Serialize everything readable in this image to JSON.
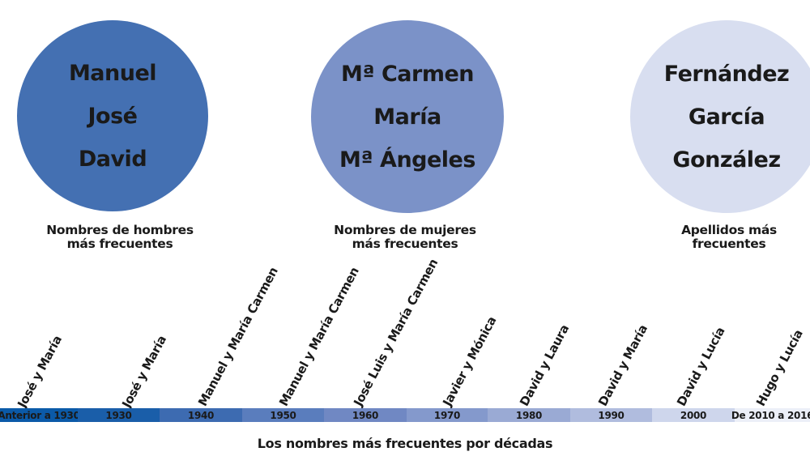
{
  "colors": {
    "circle_men": "#4470b2",
    "circle_women": "#7b92c8",
    "circle_surnames": "#d8def0"
  },
  "groups": {
    "men": {
      "names": [
        "Manuel",
        "José",
        "David"
      ],
      "caption_line1": "Nombres de hombres",
      "caption_line2": "más frecuentes"
    },
    "women": {
      "names": [
        "Mª Carmen",
        "María",
        "Mª Ángeles"
      ],
      "caption_line1": "Nombres de mujeres",
      "caption_line2": "más frecuentes"
    },
    "surnames": {
      "names": [
        "Fernández",
        "García",
        "González"
      ],
      "caption_line1": "Apellidos más",
      "caption_line2": "frecuentes"
    }
  },
  "decades": [
    {
      "label": "Anterior a 1930",
      "names": "José y María",
      "color": "#0b5aa8"
    },
    {
      "label": "1930",
      "names": "José y María",
      "color": "#1a5ea9"
    },
    {
      "label": "1940",
      "names": "Manuel y María Carmen",
      "color": "#3d6bb1"
    },
    {
      "label": "1950",
      "names": "Manuel y María Carmen",
      "color": "#5a7dbd"
    },
    {
      "label": "1960",
      "names": "José Luis y María Carmen",
      "color": "#7088c3"
    },
    {
      "label": "1970",
      "names": "Javier y Mónica",
      "color": "#8499cc"
    },
    {
      "label": "1980",
      "names": "David y Laura",
      "color": "#9aaad4"
    },
    {
      "label": "1990",
      "names": "David y María",
      "color": "#b0bcde"
    },
    {
      "label": "2000",
      "names": "David y Lucía",
      "color": "#ced6ec"
    },
    {
      "label": "De 2010 a 2016",
      "names": "Hugo y Lucía",
      "color": "#eceff8"
    }
  ],
  "footer": "Los nombres más frecuentes por décadas"
}
